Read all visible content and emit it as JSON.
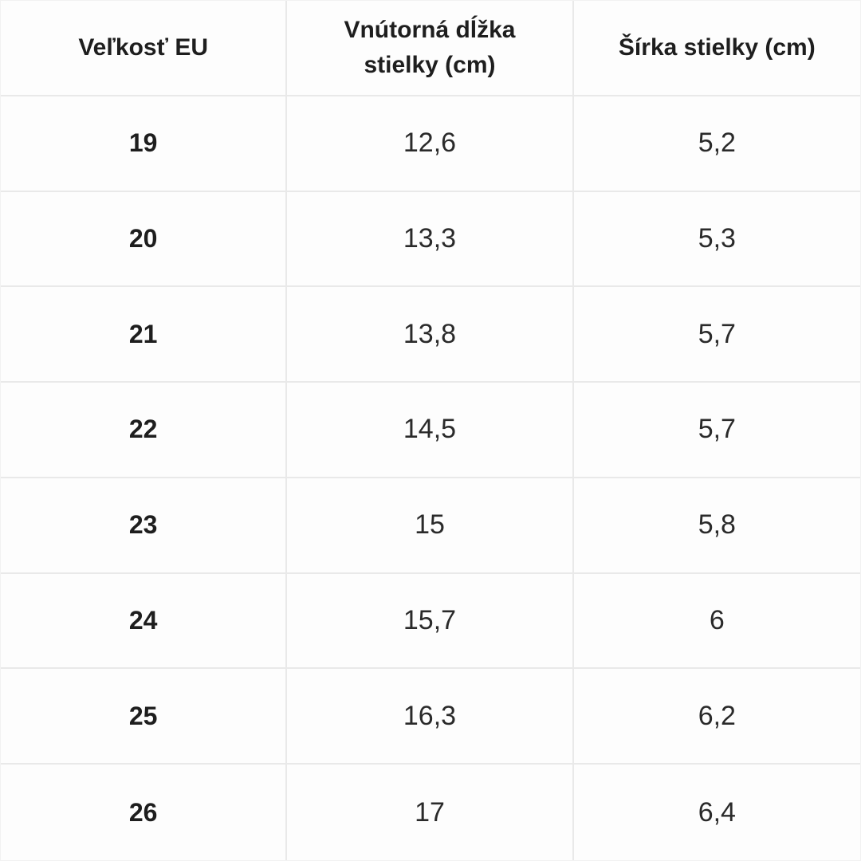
{
  "chart_data": {
    "type": "table",
    "columns": [
      "Veľkosť EU",
      "Vnútorná dĺžka stielky (cm)",
      "Šírka stielky (cm)"
    ],
    "rows": [
      [
        "19",
        "12,6",
        "5,2"
      ],
      [
        "20",
        "13,3",
        "5,3"
      ],
      [
        "21",
        "13,8",
        "5,7"
      ],
      [
        "22",
        "14,5",
        "5,7"
      ],
      [
        "23",
        "15",
        "5,8"
      ],
      [
        "24",
        "15,7",
        "6"
      ],
      [
        "25",
        "16,3",
        "6,2"
      ],
      [
        "26",
        "17",
        "6,4"
      ]
    ],
    "layout": {
      "grid": "on",
      "header_bold": true,
      "first_column_bold": true
    }
  },
  "colors": {
    "grid_line": "#e9e9e9",
    "outer_border": "#f2f2f2",
    "background": "#fdfdfd",
    "header_text": "#1e1e1e",
    "value_text": "#2a2a2a"
  }
}
